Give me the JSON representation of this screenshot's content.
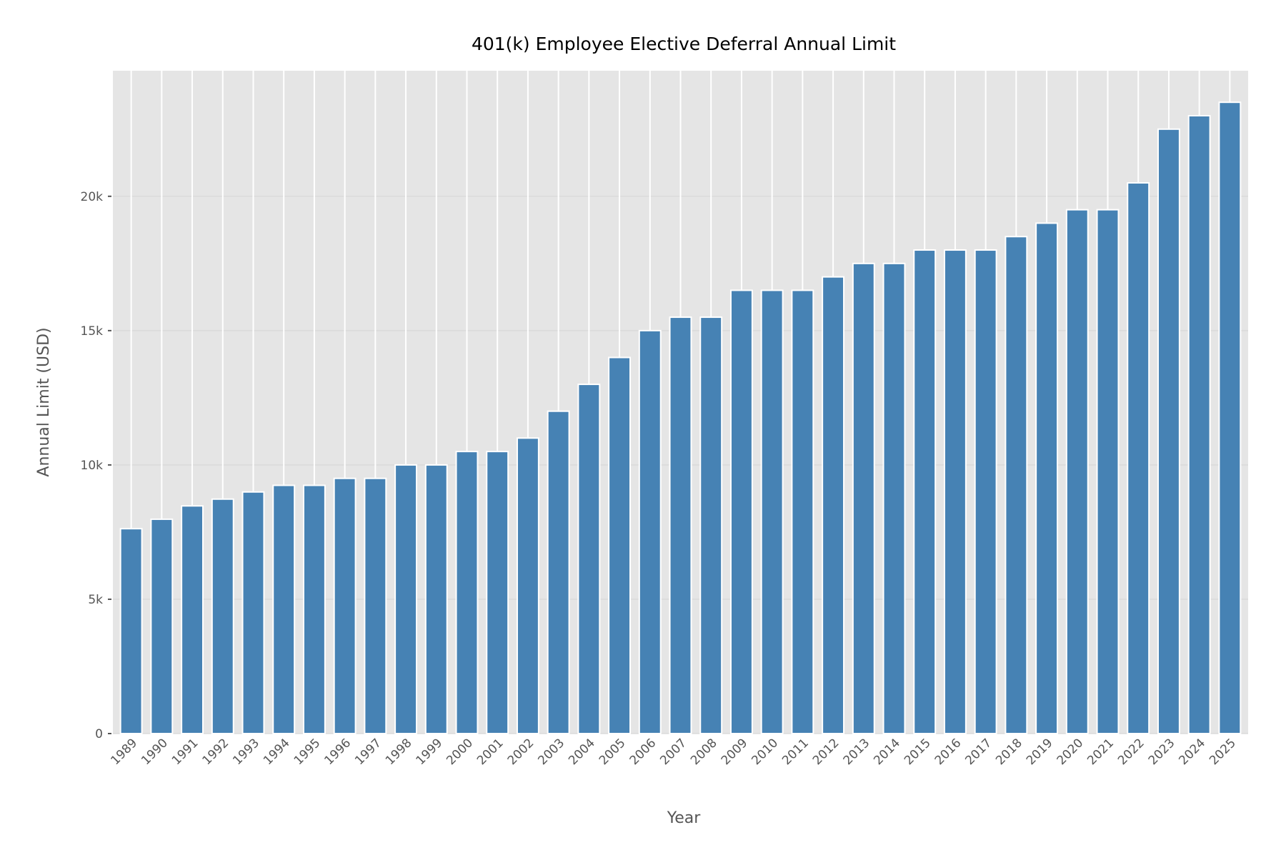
{
  "chart_data": {
    "type": "bar",
    "title": "401(k) Employee Elective Deferral Annual Limit",
    "xlabel": "Year",
    "ylabel": "Annual Limit (USD)",
    "categories": [
      "1989",
      "1990",
      "1991",
      "1992",
      "1993",
      "1994",
      "1995",
      "1996",
      "1997",
      "1998",
      "1999",
      "2000",
      "2001",
      "2002",
      "2003",
      "2004",
      "2005",
      "2006",
      "2007",
      "2008",
      "2009",
      "2010",
      "2011",
      "2012",
      "2013",
      "2014",
      "2015",
      "2016",
      "2017",
      "2018",
      "2019",
      "2020",
      "2021",
      "2022",
      "2023",
      "2024",
      "2025"
    ],
    "values": [
      7627,
      7979,
      8475,
      8728,
      8994,
      9240,
      9240,
      9500,
      9500,
      10000,
      10000,
      10500,
      10500,
      11000,
      12000,
      13000,
      14000,
      15000,
      15500,
      15500,
      16500,
      16500,
      16500,
      17000,
      17500,
      17500,
      18000,
      18000,
      18000,
      18500,
      19000,
      19500,
      19500,
      20500,
      22500,
      23000,
      23500
    ],
    "ylim": [
      0,
      24675
    ],
    "yticks": [
      0,
      5000,
      10000,
      15000,
      20000
    ],
    "ytick_labels": [
      "0",
      "5k",
      "10k",
      "15k",
      "20k"
    ],
    "grid": true,
    "colors": {
      "bar": "#4682b4",
      "background": "#e5e5e5",
      "grid": "#ffffff",
      "text": "#555555"
    }
  }
}
